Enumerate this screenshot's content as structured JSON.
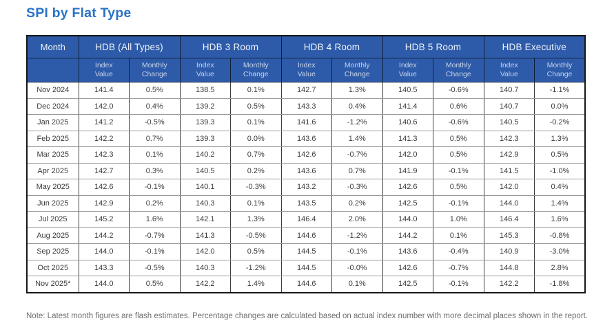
{
  "title": "SPI by Flat Type",
  "colors": {
    "title_blue": "#2a73c6",
    "header_bg": "#2e5ba9",
    "header_text": "#eef3fa",
    "subheader_text": "#c6d3e9",
    "body_text": "#3b3b3b",
    "note_text": "#6e6e6e"
  },
  "table": {
    "month_header": "Month",
    "groups": [
      "HDB (All Types)",
      "HDB 3 Room",
      "HDB 4 Room",
      "HDB 5 Room",
      "HDB Executive"
    ],
    "sub_headers": [
      "Index Value",
      "Monthly Change"
    ],
    "rows": [
      {
        "month": "Nov 2024",
        "values": [
          "141.4",
          "0.5%",
          "138.5",
          "0.1%",
          "142.7",
          "1.3%",
          "140.5",
          "-0.6%",
          "140.7",
          "-1.1%"
        ]
      },
      {
        "month": "Dec 2024",
        "values": [
          "142.0",
          "0.4%",
          "139.2",
          "0.5%",
          "143.3",
          "0.4%",
          "141.4",
          "0.6%",
          "140.7",
          "0.0%"
        ]
      },
      {
        "month": "Jan 2025",
        "values": [
          "141.2",
          "-0.5%",
          "139.3",
          "0.1%",
          "141.6",
          "-1.2%",
          "140.6",
          "-0.6%",
          "140.5",
          "-0.2%"
        ]
      },
      {
        "month": "Feb 2025",
        "values": [
          "142.2",
          "0.7%",
          "139.3",
          "0.0%",
          "143.6",
          "1.4%",
          "141.3",
          "0.5%",
          "142.3",
          "1.3%"
        ]
      },
      {
        "month": "Mar 2025",
        "values": [
          "142.3",
          "0.1%",
          "140.2",
          "0.7%",
          "142.6",
          "-0.7%",
          "142.0",
          "0.5%",
          "142.9",
          "0.5%"
        ]
      },
      {
        "month": "Apr 2025",
        "values": [
          "142.7",
          "0.3%",
          "140.5",
          "0.2%",
          "143.6",
          "0.7%",
          "141.9",
          "-0.1%",
          "141.5",
          "-1.0%"
        ]
      },
      {
        "month": "May 2025",
        "values": [
          "142.6",
          "-0.1%",
          "140.1",
          "-0.3%",
          "143.2",
          "-0.3%",
          "142.6",
          "0.5%",
          "142.0",
          "0.4%"
        ]
      },
      {
        "month": "Jun 2025",
        "values": [
          "142.9",
          "0.2%",
          "140.3",
          "0.1%",
          "143.5",
          "0.2%",
          "142.5",
          "-0.1%",
          "144.0",
          "1.4%"
        ]
      },
      {
        "month": "Jul 2025",
        "values": [
          "145.2",
          "1.6%",
          "142.1",
          "1.3%",
          "146.4",
          "2.0%",
          "144.0",
          "1.0%",
          "146.4",
          "1.6%"
        ]
      },
      {
        "month": "Aug 2025",
        "values": [
          "144.2",
          "-0.7%",
          "141.3",
          "-0.5%",
          "144.6",
          "-1.2%",
          "144.2",
          "0.1%",
          "145.3",
          "-0.8%"
        ]
      },
      {
        "month": "Sep 2025",
        "values": [
          "144.0",
          "-0.1%",
          "142.0",
          "0.5%",
          "144.5",
          "-0.1%",
          "143.6",
          "-0.4%",
          "140.9",
          "-3.0%"
        ]
      },
      {
        "month": "Oct 2025",
        "values": [
          "143.3",
          "-0.5%",
          "140.3",
          "-1.2%",
          "144.5",
          "-0.0%",
          "142.6",
          "-0.7%",
          "144.8",
          "2.8%"
        ]
      },
      {
        "month": "Nov 2025*",
        "values": [
          "144.0",
          "0.5%",
          "142.2",
          "1.4%",
          "144.6",
          "0.1%",
          "142.5",
          "-0.1%",
          "142.2",
          "-1.8%"
        ]
      }
    ]
  },
  "note": "Note: Latest month figures are flash estimates. Percentage changes are calculated based on actual index number with more decimal places shown in the report."
}
